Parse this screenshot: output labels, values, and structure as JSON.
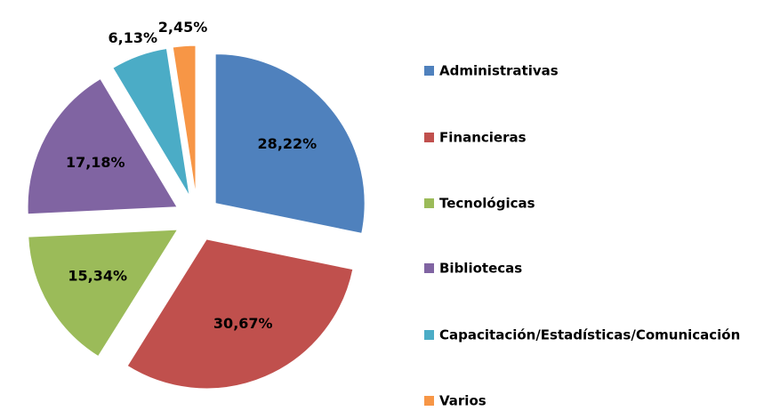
{
  "chart_data": {
    "type": "pie",
    "categories": [
      "Administrativas",
      "Financieras",
      "Tecnológicas",
      "Bibliotecas",
      "Capacitación/Estadísticas/Comunicación",
      "Varios"
    ],
    "values": [
      28.22,
      30.67,
      15.34,
      17.18,
      6.13,
      2.45
    ],
    "value_labels": [
      "28,22%",
      "30,67%",
      "15,34%",
      "17,18%",
      "6,13%",
      "2,45%"
    ],
    "colors": [
      "#4f81bd",
      "#c0504d",
      "#9bbb59",
      "#8064a2",
      "#4bacc6",
      "#f79646"
    ],
    "legend": "right"
  }
}
